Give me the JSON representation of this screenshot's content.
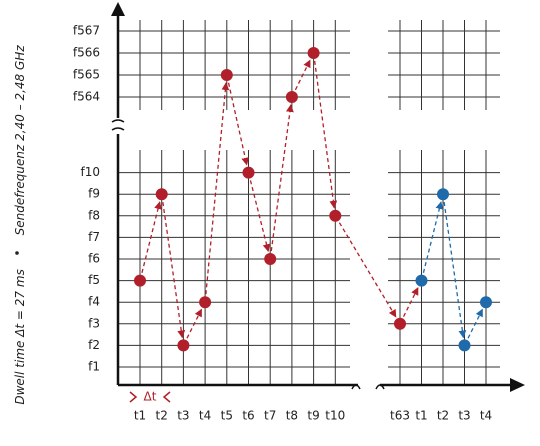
{
  "chart_data": {
    "type": "hopping",
    "ylabel": "Sendefrequenz 2,40 – 2,48 GHz",
    "note": "Dwell time Δt = 27 ms",
    "interval_label": "Δt",
    "categories": [
      "t1",
      "t2",
      "t3",
      "t4",
      "t5",
      "t6",
      "t7",
      "t8",
      "t9",
      "t10",
      "t63",
      "t1",
      "t2",
      "t3",
      "t4"
    ],
    "yticks": [
      {
        "value": 1,
        "label": "f1"
      },
      {
        "value": 2,
        "label": "f2"
      },
      {
        "value": 3,
        "label": "f3"
      },
      {
        "value": 4,
        "label": "f4"
      },
      {
        "value": 5,
        "label": "f5"
      },
      {
        "value": 6,
        "label": "f6"
      },
      {
        "value": 7,
        "label": "f7"
      },
      {
        "value": 8,
        "label": "f8"
      },
      {
        "value": 9,
        "label": "f9"
      },
      {
        "value": 10,
        "label": "f10"
      },
      {
        "value": 564,
        "label": "f564"
      },
      {
        "value": 565,
        "label": "f565"
      },
      {
        "value": 566,
        "label": "f566"
      },
      {
        "value": 567,
        "label": "f567"
      }
    ],
    "axis_break": true,
    "grid": true,
    "series": [
      {
        "color": "#b01f2a",
        "values": [
          5,
          9,
          2,
          4,
          565,
          10,
          6,
          564,
          566,
          8,
          3,
          null,
          null,
          null,
          null
        ]
      },
      {
        "color": "#1f6aaa",
        "values": [
          null,
          null,
          null,
          null,
          null,
          null,
          null,
          null,
          null,
          null,
          null,
          5,
          9,
          2,
          4
        ]
      }
    ]
  }
}
